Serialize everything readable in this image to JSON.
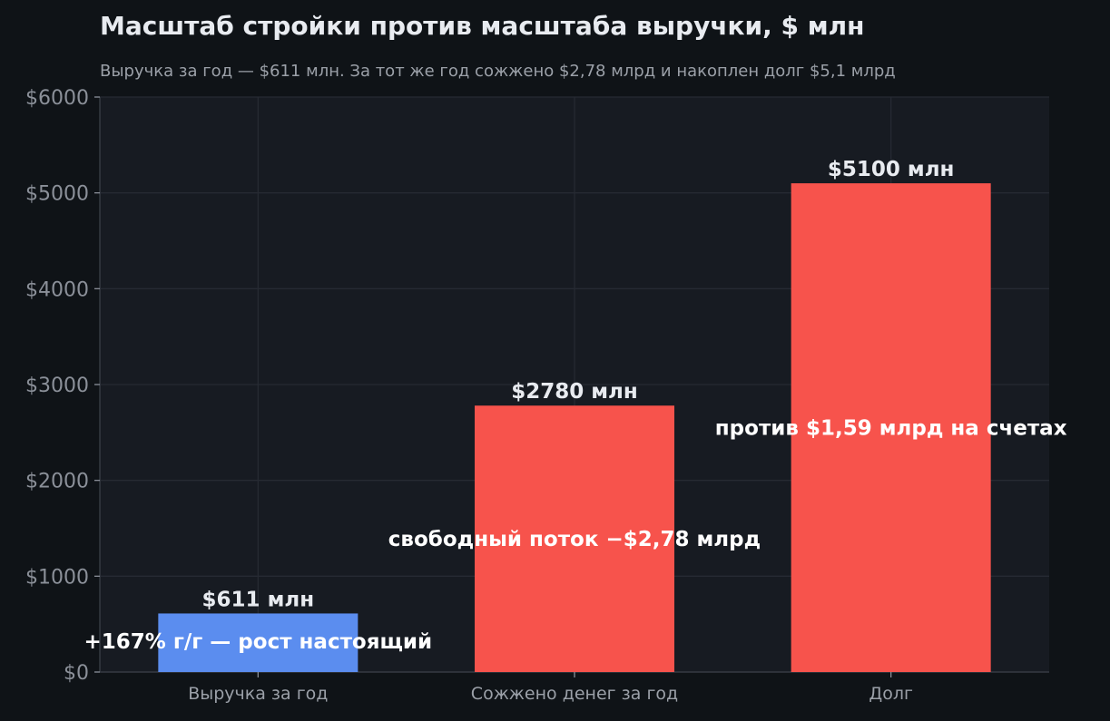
{
  "chart_data": {
    "type": "bar",
    "title": "Масштаб стройки против масштаба выручки, $ млн",
    "subtitle": "Выручка за год — $611 млн. За тот же год сожжено $2,78 млрд и накоплен долг $5,1 млрд",
    "categories": [
      "Выручка за год",
      "Сожжено денег за год",
      "Долг"
    ],
    "values": [
      611,
      2780,
      5100
    ],
    "value_labels": [
      "$611 млн",
      "$2780 млн",
      "$5100 млн"
    ],
    "annotations": [
      {
        "category_index": 0,
        "text": "+167% г/г — рост настоящий",
        "y": 320
      },
      {
        "category_index": 1,
        "text": "свободный поток −$2,78 млрд",
        "y": 1390
      },
      {
        "category_index": 2,
        "text": "против $1,59 млрд на счетах",
        "y": 2550
      }
    ],
    "colors": [
      "#5b8def",
      "#f7534c",
      "#f7534c"
    ],
    "ylim": [
      0,
      6000
    ],
    "yticks": [
      0,
      1000,
      2000,
      3000,
      4000,
      5000,
      6000
    ],
    "ytick_labels": [
      "$0",
      "$1000",
      "$2000",
      "$3000",
      "$4000",
      "$5000",
      "$6000"
    ],
    "xlabel": "",
    "ylabel": "",
    "grid": true,
    "background": "#0f1317",
    "plot_background": "#171b22",
    "grid_color": "#262a33",
    "title_color": "#e8ebf0",
    "subtitle_color": "#9ba0a8",
    "tick_color": "#8b9099"
  }
}
